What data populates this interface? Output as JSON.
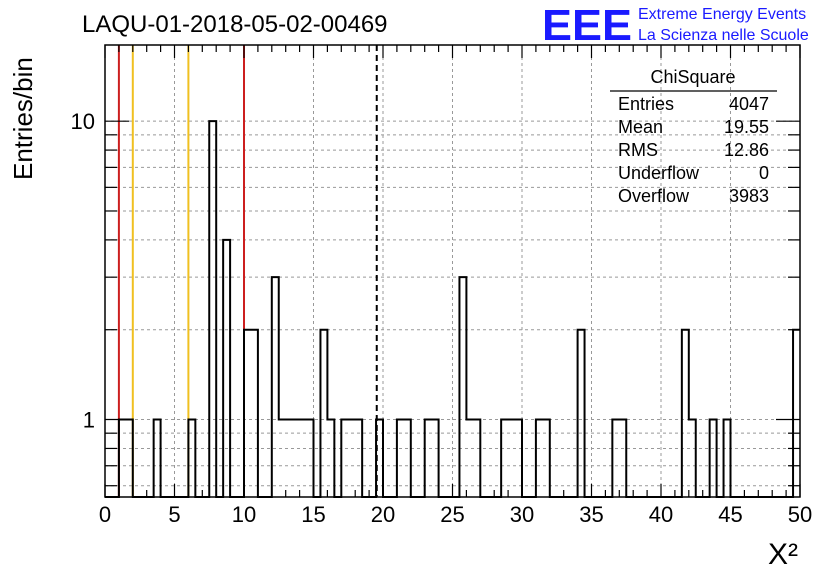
{
  "chart_data": {
    "type": "histogram",
    "title": "LAQU-01-2018-05-02-00469",
    "xlabel": "X²",
    "ylabel": "Entries/bin",
    "xlim": [
      0,
      50
    ],
    "ylim": [
      0.55,
      18
    ],
    "yscale": "log",
    "grid": true,
    "bin_width": 0.5,
    "x_ticks": [
      0,
      5,
      10,
      15,
      20,
      25,
      30,
      35,
      40,
      45,
      50
    ],
    "y_ticks": [
      1,
      10
    ],
    "bins": [
      {
        "x": 1.0,
        "y": 1
      },
      {
        "x": 1.5,
        "y": 1
      },
      {
        "x": 3.5,
        "y": 1
      },
      {
        "x": 6.0,
        "y": 1
      },
      {
        "x": 7.5,
        "y": 10
      },
      {
        "x": 8.5,
        "y": 4
      },
      {
        "x": 10.0,
        "y": 2
      },
      {
        "x": 10.5,
        "y": 2
      },
      {
        "x": 12.0,
        "y": 3
      },
      {
        "x": 12.5,
        "y": 1
      },
      {
        "x": 13.0,
        "y": 1
      },
      {
        "x": 13.5,
        "y": 1
      },
      {
        "x": 14.0,
        "y": 1
      },
      {
        "x": 14.5,
        "y": 1
      },
      {
        "x": 15.5,
        "y": 2
      },
      {
        "x": 16.0,
        "y": 1
      },
      {
        "x": 17.0,
        "y": 1
      },
      {
        "x": 17.5,
        "y": 1
      },
      {
        "x": 18.0,
        "y": 1
      },
      {
        "x": 19.5,
        "y": 1
      },
      {
        "x": 21.0,
        "y": 1
      },
      {
        "x": 21.5,
        "y": 1
      },
      {
        "x": 23.0,
        "y": 1
      },
      {
        "x": 23.5,
        "y": 1
      },
      {
        "x": 25.5,
        "y": 3
      },
      {
        "x": 26.0,
        "y": 1
      },
      {
        "x": 26.5,
        "y": 1
      },
      {
        "x": 28.5,
        "y": 1
      },
      {
        "x": 29.0,
        "y": 1
      },
      {
        "x": 29.5,
        "y": 1
      },
      {
        "x": 31.0,
        "y": 1
      },
      {
        "x": 31.5,
        "y": 1
      },
      {
        "x": 34.0,
        "y": 2
      },
      {
        "x": 36.5,
        "y": 1
      },
      {
        "x": 37.0,
        "y": 1
      },
      {
        "x": 41.5,
        "y": 2
      },
      {
        "x": 42.0,
        "y": 1
      },
      {
        "x": 43.5,
        "y": 1
      },
      {
        "x": 44.5,
        "y": 1
      },
      {
        "x": 49.5,
        "y": 2
      }
    ],
    "reference_lines": [
      {
        "x": 1.0,
        "color": "#cc1f1f",
        "style": "solid"
      },
      {
        "x": 2.0,
        "color": "#f0c020",
        "style": "solid"
      },
      {
        "x": 6.0,
        "color": "#f0c020",
        "style": "solid"
      },
      {
        "x": 10.0,
        "color": "#cc1f1f",
        "style": "solid"
      },
      {
        "x": 19.55,
        "color": "#000000",
        "style": "dashed"
      }
    ],
    "stats_box": {
      "title": "ChiSquare",
      "rows": [
        {
          "label": "Entries",
          "value": "4047"
        },
        {
          "label": "Mean",
          "value": "19.55"
        },
        {
          "label": "RMS",
          "value": "12.86"
        },
        {
          "label": "Underflow",
          "value": "0"
        },
        {
          "label": "Overflow",
          "value": "3983"
        }
      ]
    }
  },
  "logo": {
    "mark": "EEE",
    "line1": "Extreme Energy Events",
    "line2": "La Scienza nelle Scuole",
    "color": "#1a1aff"
  }
}
